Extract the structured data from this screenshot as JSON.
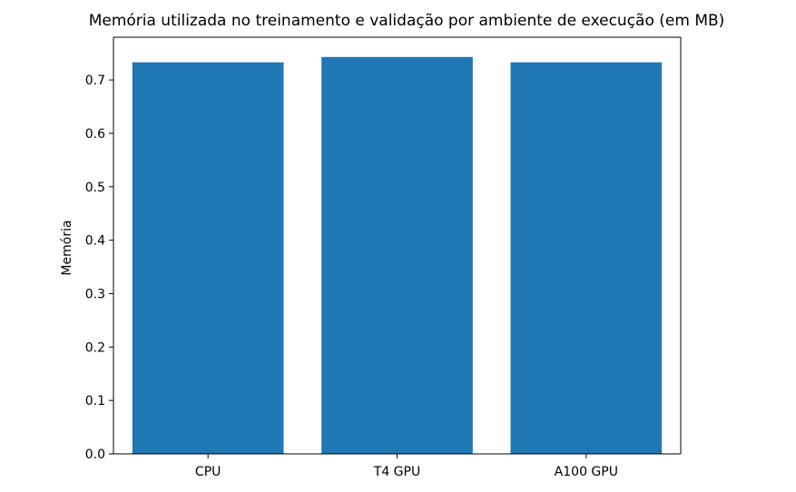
{
  "chart_data": {
    "type": "bar",
    "title": "Memória utilizada no treinamento e validação por ambiente de execução (em MB)",
    "xlabel": "",
    "ylabel": "Memória",
    "categories": [
      "CPU",
      "T4 GPU",
      "A100 GPU"
    ],
    "values": [
      0.733,
      0.743,
      0.733
    ],
    "ylim": [
      0,
      0.78
    ],
    "yticks": [
      "0.0",
      "0.1",
      "0.2",
      "0.3",
      "0.4",
      "0.5",
      "0.6",
      "0.7"
    ],
    "bar_color": "#1f77b4",
    "grid": false,
    "legend": false
  }
}
